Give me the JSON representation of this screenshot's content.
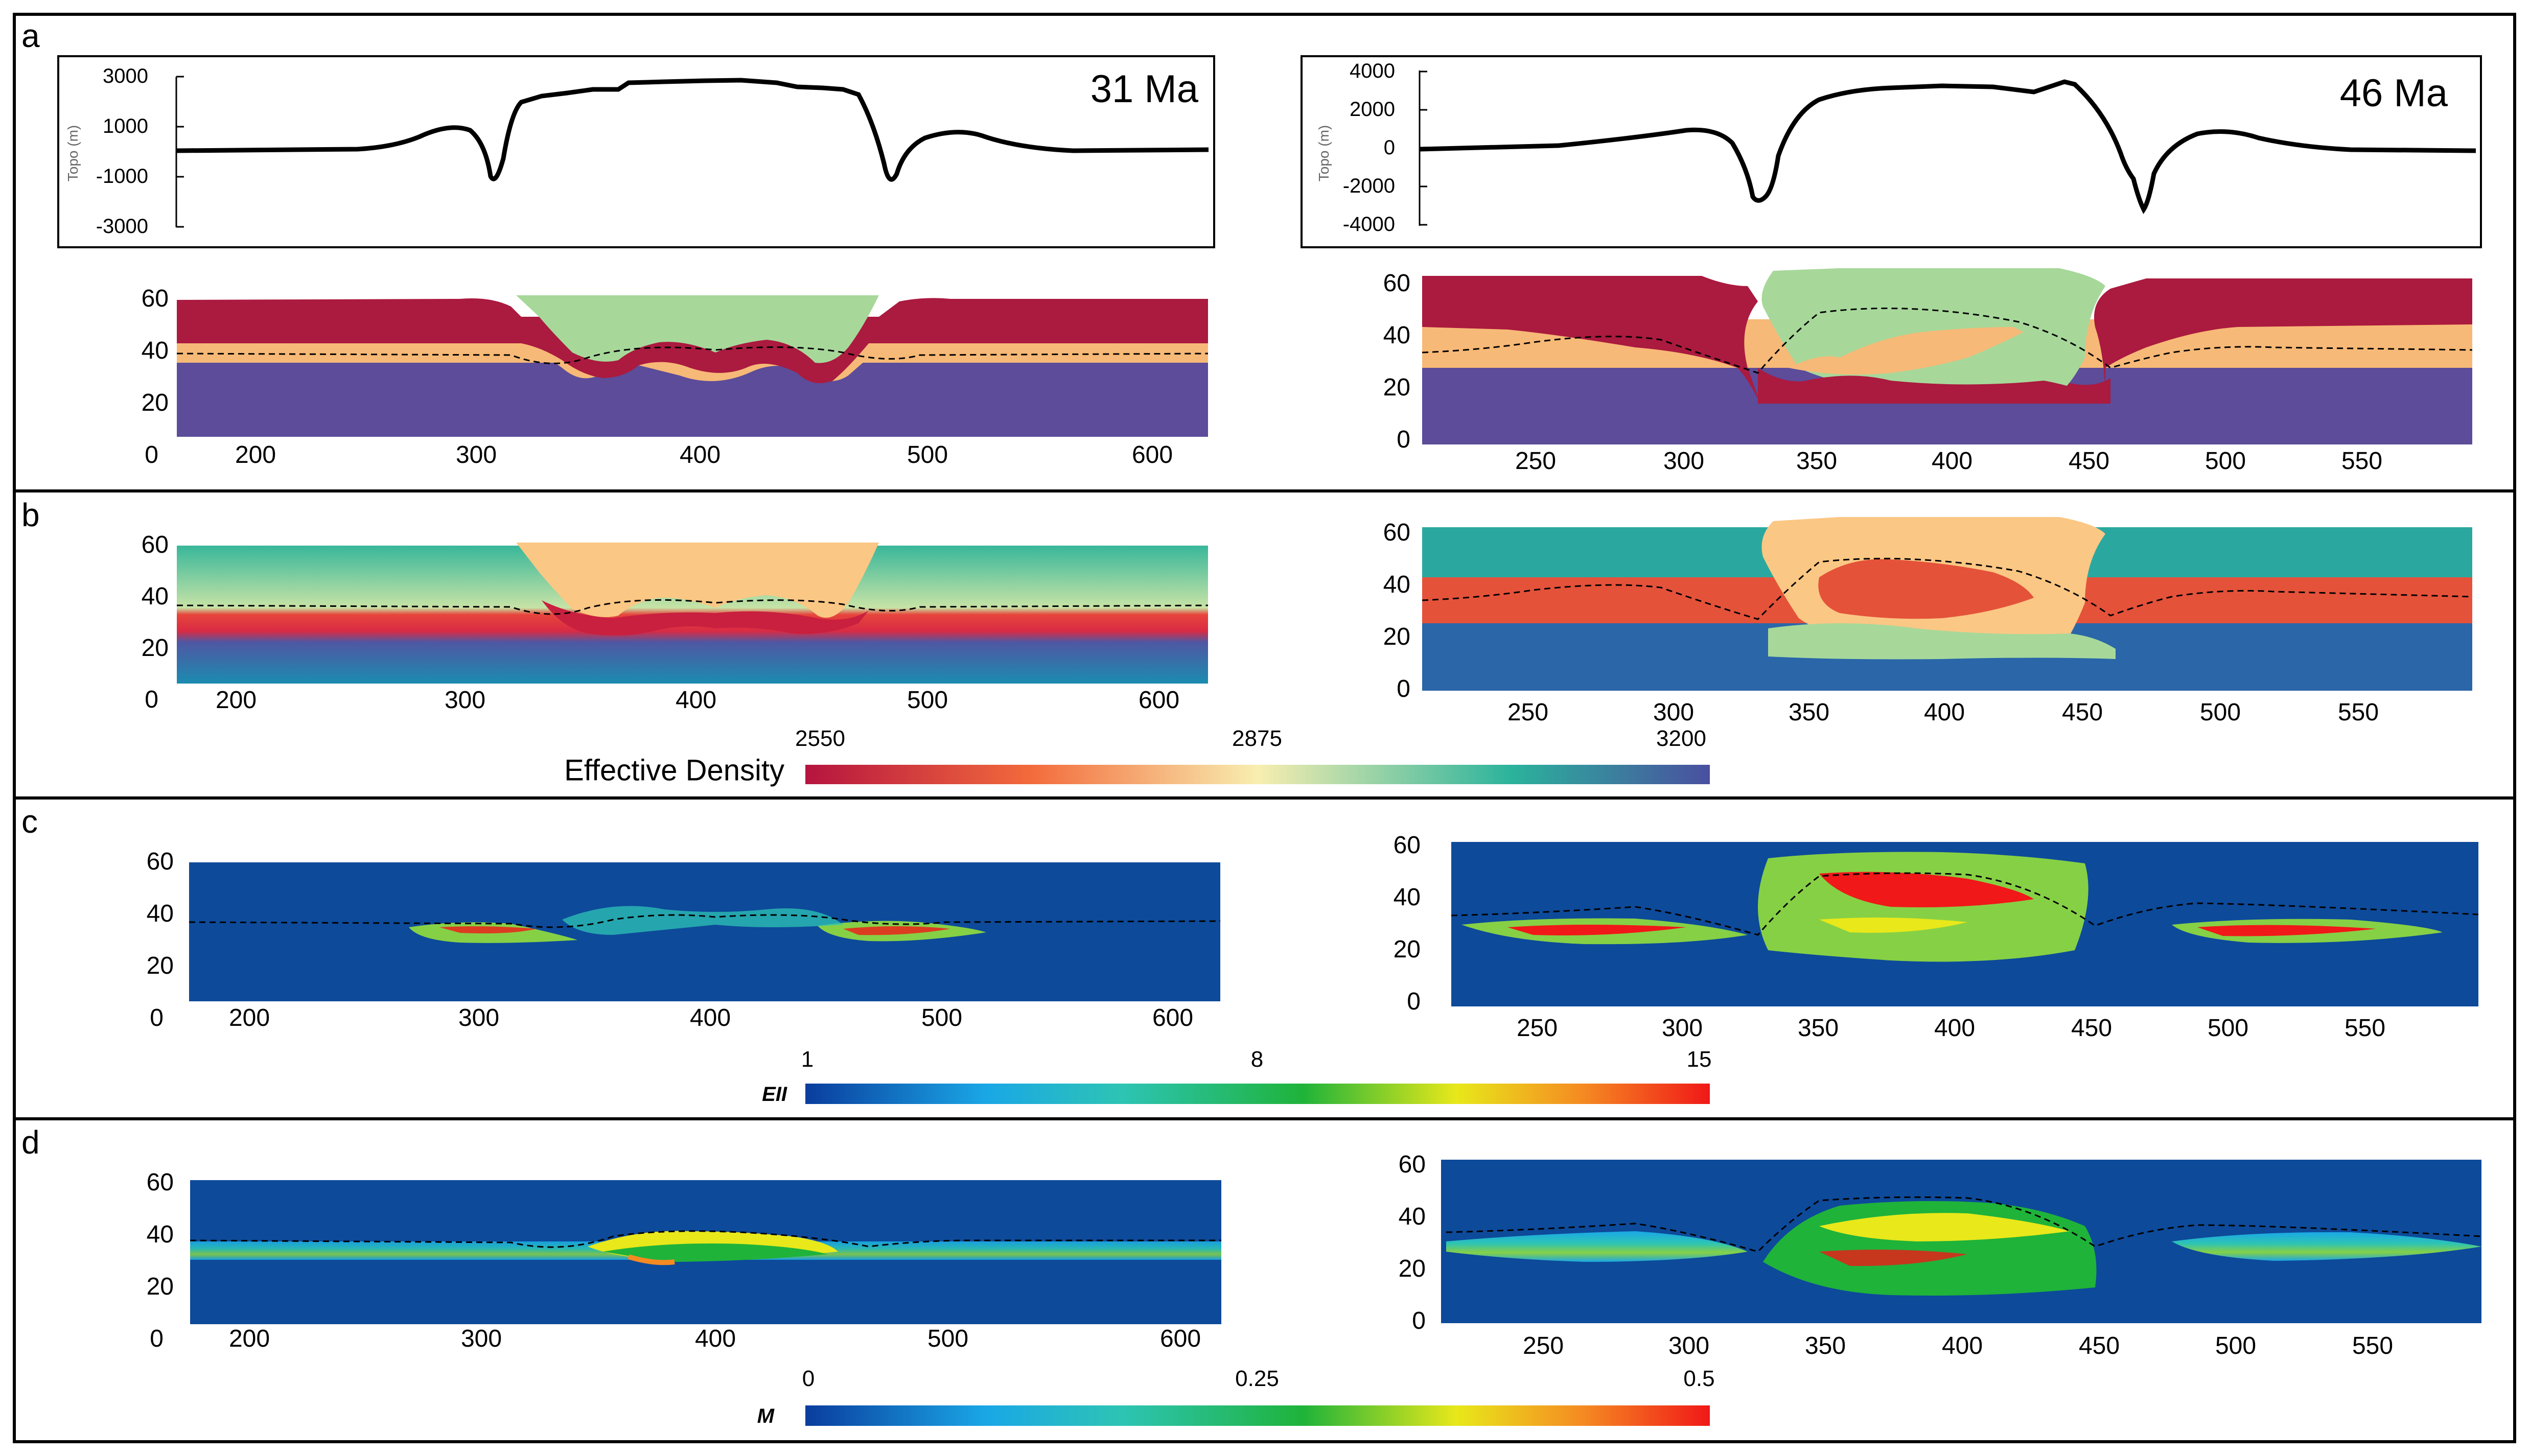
{
  "panels": {
    "a": "a",
    "b": "b",
    "c": "c",
    "d": "d"
  },
  "ages": {
    "left": "31 Ma",
    "right": "46 Ma"
  },
  "topo": {
    "axis_label": "Topo (m)",
    "left_ticks": [
      "3000",
      "1000",
      "-1000",
      "-3000"
    ],
    "right_ticks": [
      "4000",
      "2000",
      "0",
      "-2000",
      "-4000"
    ]
  },
  "depth_ticks": [
    "60",
    "40",
    "20",
    "0"
  ],
  "x_ticks": {
    "left": [
      "200",
      "300",
      "400",
      "500",
      "600"
    ],
    "right": [
      "250",
      "300",
      "350",
      "400",
      "450",
      "500",
      "550"
    ]
  },
  "colorbars": {
    "density": {
      "title": "Effective Density",
      "min": "2550",
      "mid": "2875",
      "max": "3200"
    },
    "strain": {
      "title": "EII",
      "min": "1",
      "mid": "8",
      "max": "15"
    },
    "melt": {
      "title": "M",
      "min": "0",
      "mid": "0.25",
      "max": "0.5"
    }
  },
  "colors": {
    "upper_crust": "#ab1a3f",
    "lower_crust": "#f7b977",
    "mantle": "#5c4c9a",
    "sediment": "#a7d89a",
    "model_bg": "#0d4a9a",
    "frame": "#000000"
  }
}
